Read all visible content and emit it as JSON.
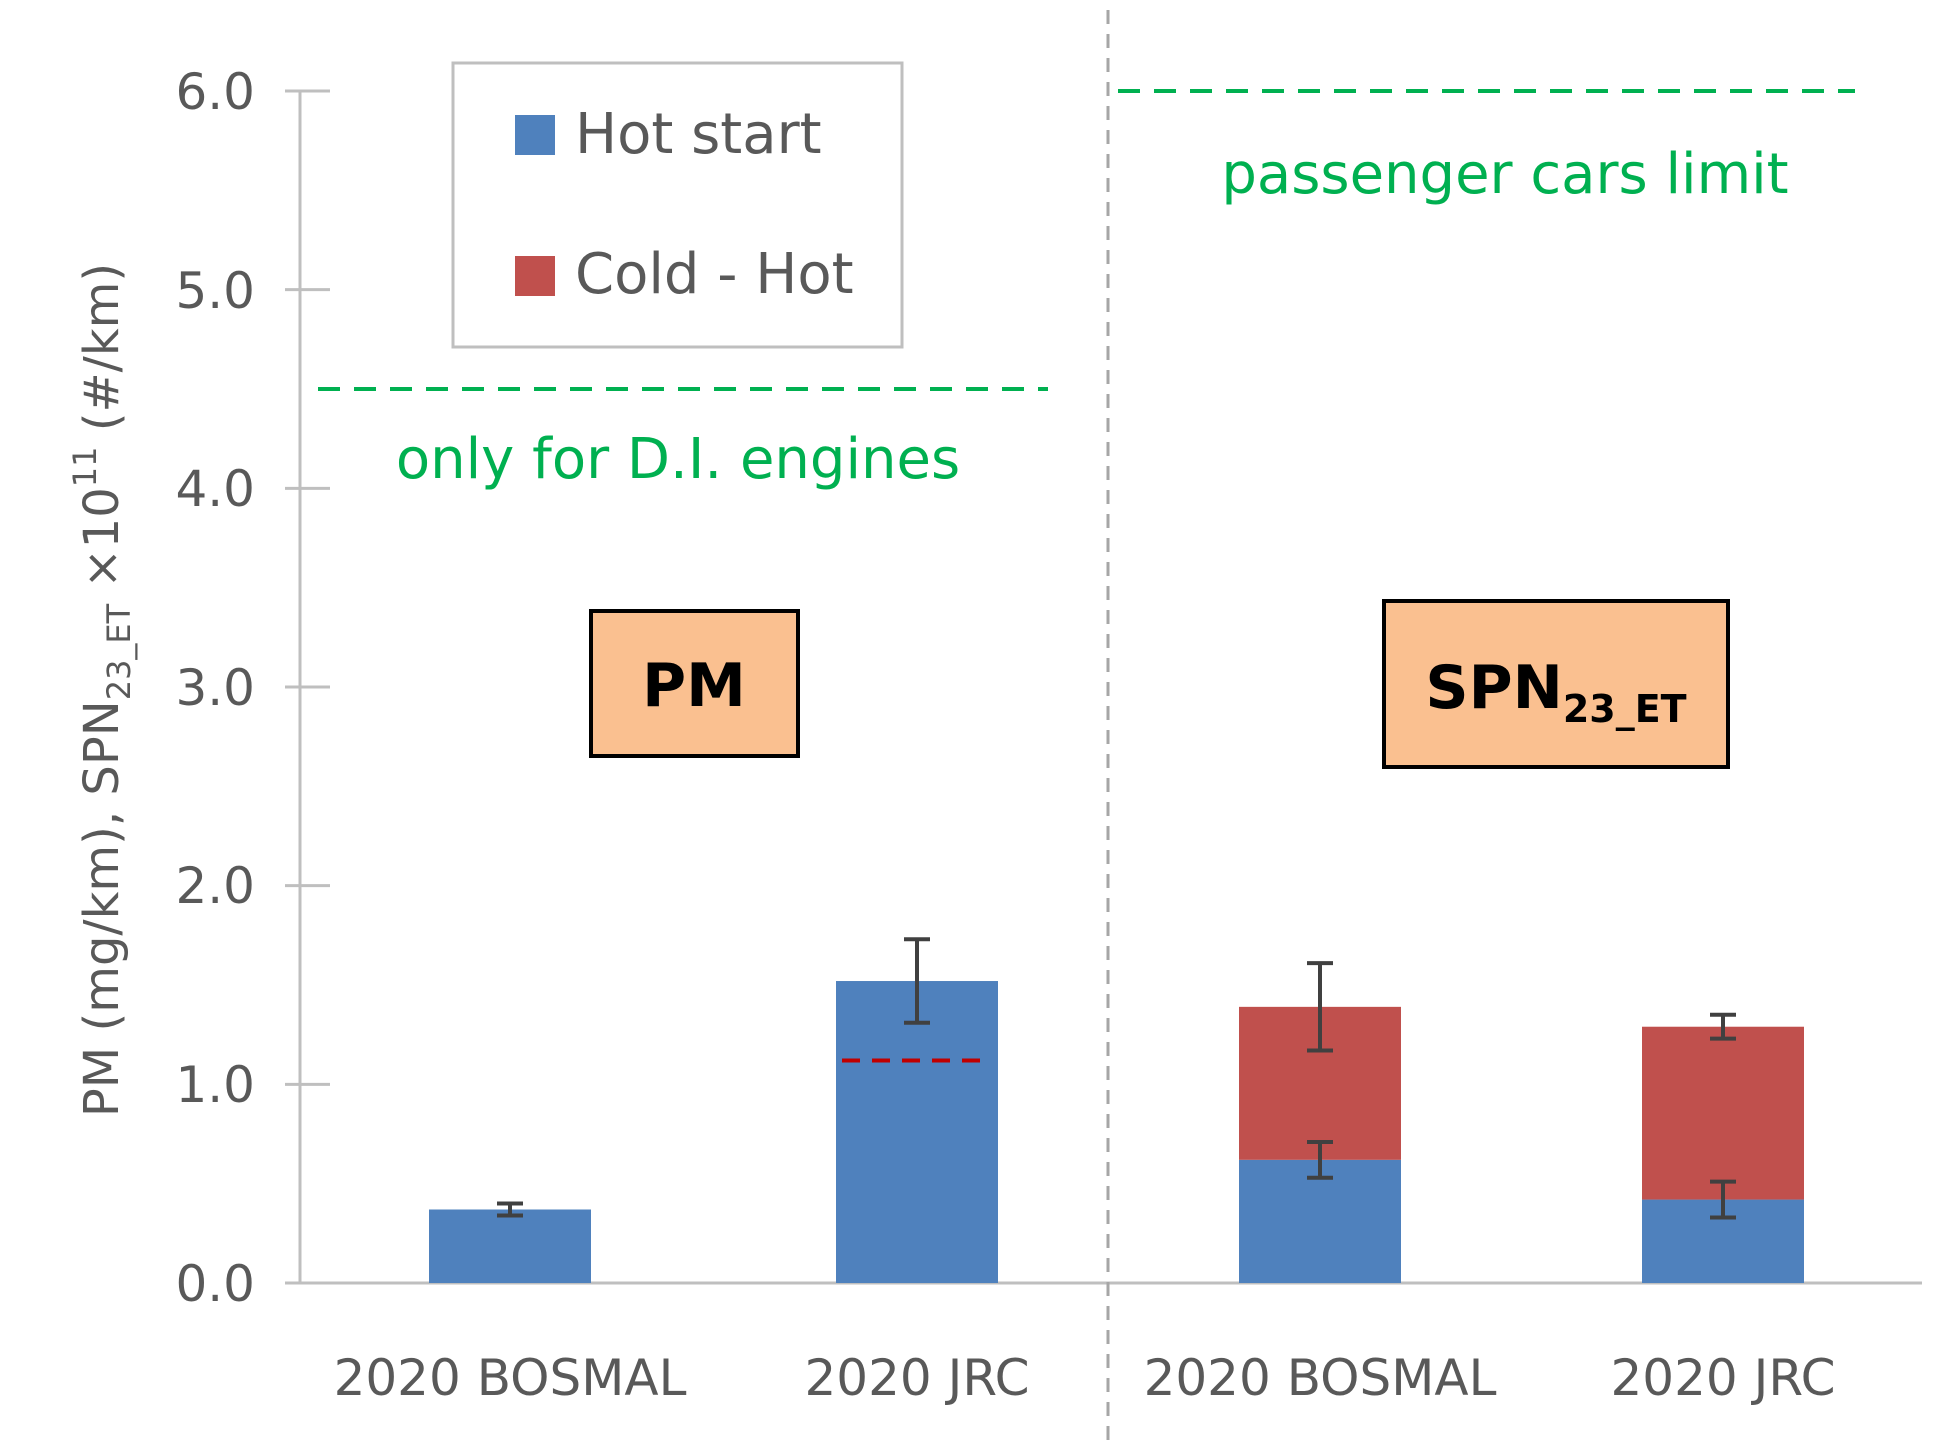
{
  "chart_data": {
    "type": "bar",
    "stacked": true,
    "title": "",
    "ylabel": {
      "prefix": "PM (mg/km), SPN",
      "sub": "23_ET",
      "times": " ×10",
      "sup": "11",
      "suffix": " (#/km)"
    },
    "ylim": [
      0,
      6
    ],
    "yticks": [
      "0.0",
      "1.0",
      "2.0",
      "3.0",
      "4.0",
      "5.0",
      "6.0"
    ],
    "categories": [
      "2020 BOSMAL",
      "2020 JRC",
      "2020 BOSMAL",
      "2020 JRC"
    ],
    "series": [
      {
        "name": "Hot start",
        "color": "#4f81bd",
        "values": [
          0.37,
          1.52,
          0.62,
          0.42
        ],
        "errors": [
          0.03,
          0.21,
          0.09,
          0.09
        ]
      },
      {
        "name": "Cold - Hot",
        "color": "#c0504d",
        "values": [
          0,
          0,
          0.77,
          0.87
        ],
        "errors": [
          0,
          0,
          0.22,
          0.06
        ]
      }
    ],
    "panels": [
      {
        "label": "PM",
        "categories": [
          0,
          1
        ]
      },
      {
        "label": "SPN",
        "label_sub": "23_ET",
        "categories": [
          2,
          3
        ]
      }
    ],
    "limits": [
      {
        "panel": 0,
        "value": 4.5,
        "label": "only for D.I. engines",
        "color": "#00b050"
      },
      {
        "panel": 1,
        "value": 6.0,
        "label": "passenger cars limit",
        "color": "#00b050"
      }
    ],
    "reference_line": {
      "category": 1,
      "value": 1.12,
      "color": "#c00000"
    },
    "legend": {
      "position": "top-left",
      "entries": [
        "Hot start",
        "Cold - Hot"
      ]
    }
  }
}
